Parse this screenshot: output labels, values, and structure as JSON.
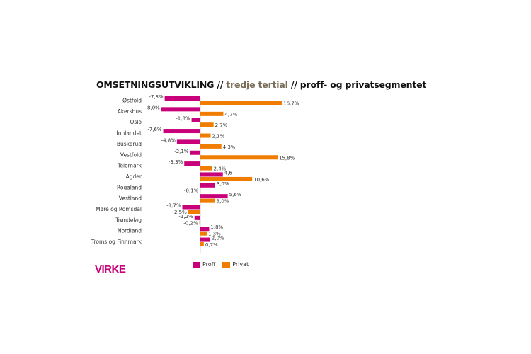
{
  "title": {
    "part1": "OMSETNINGSUTVIKLING //",
    "part2": " tredje tertial ",
    "part3": "// proff- og privatsegmentet"
  },
  "logo": "VIRKE",
  "colors": {
    "proff": "#c8007a",
    "privat": "#f07d00"
  },
  "chart_data": {
    "type": "bar",
    "orientation": "horizontal",
    "title": "OMSETNINGSUTVIKLING // tredje tertial // proff- og privatsegmentet",
    "categories": [
      "Østfold",
      "Akershus",
      "Oslo",
      "Innlandet",
      "Buskerud",
      "Vestfold",
      "Telemark",
      "Agder",
      "Rogaland",
      "Vestland",
      "Møre og Romsdal",
      "Trøndelag",
      "Nordland",
      "Troms og Finnmark"
    ],
    "series": [
      {
        "name": "Proff",
        "values": [
          -7.3,
          -8.0,
          -1.8,
          -7.6,
          -4.8,
          -2.1,
          -3.3,
          4.6,
          3.0,
          5.6,
          -3.7,
          -1.2,
          1.8,
          2.0
        ],
        "labels": [
          "-7,3%",
          "-8,0%",
          "-1,8%",
          "-7,6%",
          "-4,8%",
          "-2,1%",
          "-3,3%",
          "4,6",
          "3,0%",
          "5,6%",
          "-3,7%",
          "-1,2%",
          "1,8%",
          "2,0%"
        ]
      },
      {
        "name": "Privat",
        "values": [
          16.7,
          4.7,
          2.7,
          2.1,
          4.3,
          15.8,
          2.4,
          10.6,
          -0.1,
          3.0,
          -2.5,
          -0.2,
          1.3,
          0.7
        ],
        "labels": [
          "16,7%",
          "4,7%",
          "2,7%",
          "2,1%",
          "4,3%",
          "15,8%",
          "2,4%",
          "10,6%",
          "-0,1%",
          "3,0%",
          "-2,5%",
          "-0,2%",
          "1,3%",
          "0,7%"
        ]
      }
    ],
    "legend": "bottom",
    "grid": false
  }
}
